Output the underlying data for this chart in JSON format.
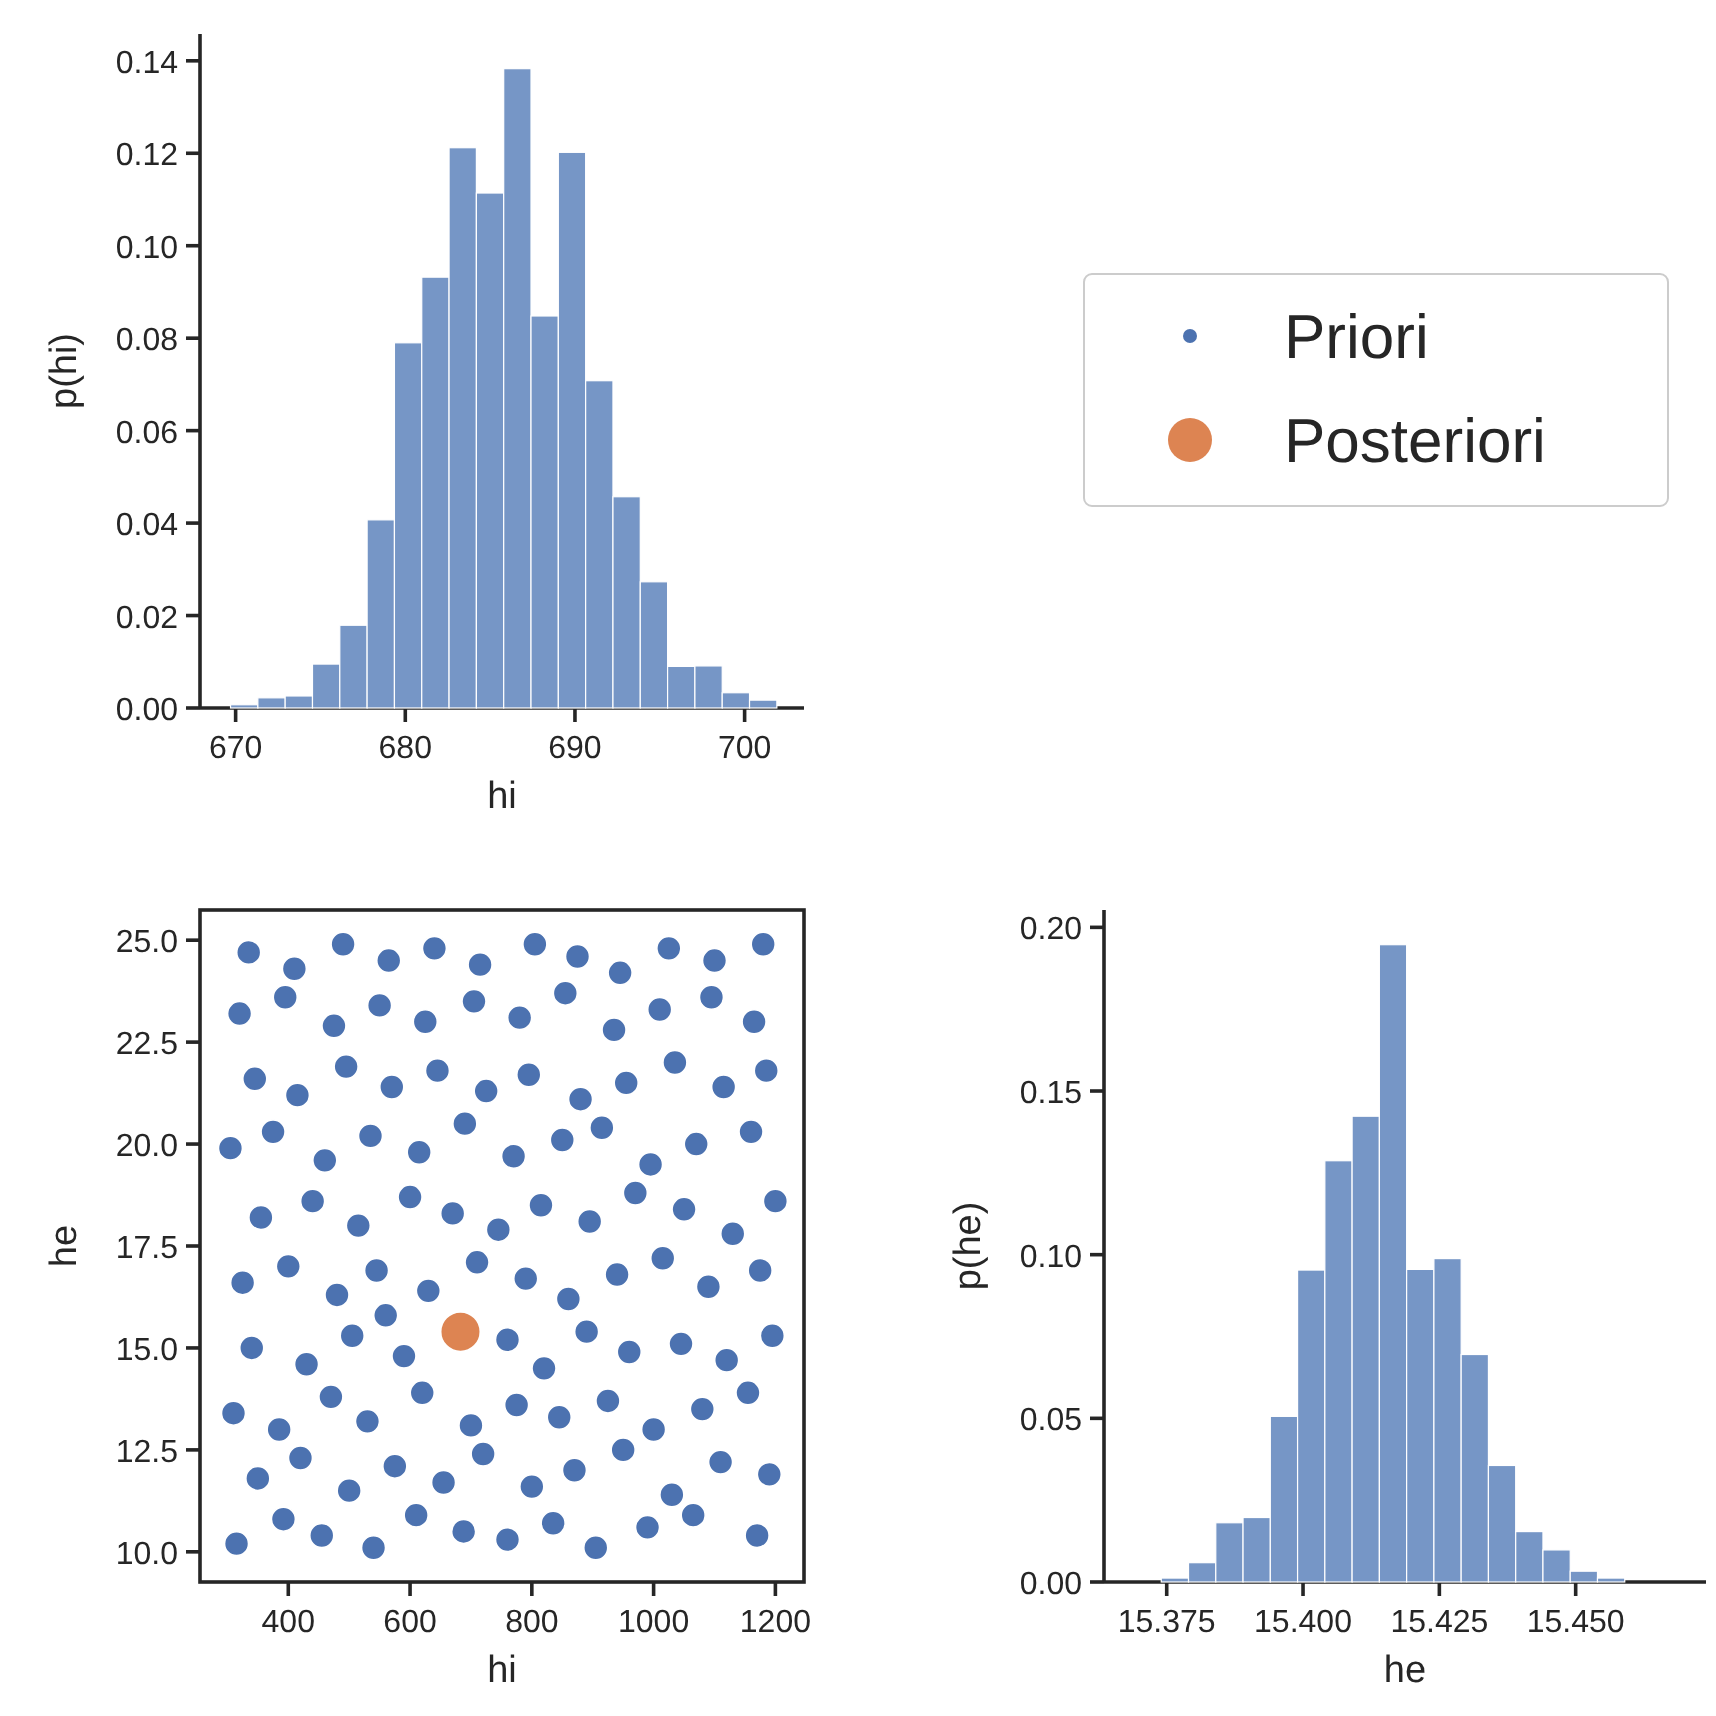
{
  "chart_data": [
    {
      "type": "histogram",
      "xlabel": "hi",
      "ylabel": "p(hi)",
      "color": "#7696c6",
      "bins": [
        669.7,
        671.31,
        672.92,
        674.53,
        676.14,
        677.75,
        679.36,
        680.97,
        682.58,
        684.19,
        685.8,
        687.41,
        689.02,
        690.63,
        692.24,
        693.85,
        695.46,
        697.07,
        698.68,
        700.29,
        701.9
      ],
      "values": [
        0.0007,
        0.0022,
        0.0026,
        0.0095,
        0.0179,
        0.0407,
        0.079,
        0.0932,
        0.1212,
        0.1114,
        0.1383,
        0.0848,
        0.1202,
        0.0708,
        0.0457,
        0.0273,
        0.009,
        0.0091,
        0.0033,
        0.0017
      ],
      "xlim": [
        667.9,
        703.5
      ],
      "ylim": [
        0,
        0.1458
      ],
      "xticks": [
        670,
        680,
        690,
        700
      ],
      "yticks": [
        {
          "value": 0,
          "label": "0.00"
        },
        {
          "value": 0.02,
          "label": "0.02"
        },
        {
          "value": 0.04,
          "label": "0.04"
        },
        {
          "value": 0.06,
          "label": "0.06"
        },
        {
          "value": 0.08,
          "label": "0.08"
        },
        {
          "value": 0.1,
          "label": "0.10"
        },
        {
          "value": 0.12,
          "label": "0.12"
        },
        {
          "value": 0.14,
          "label": "0.14"
        }
      ]
    },
    {
      "type": "scatter",
      "xlabel": "hi",
      "ylabel": "he",
      "marker": "circle",
      "legend": "top right",
      "xlim": [
        255,
        1247
      ],
      "ylim": [
        9.26,
        25.74
      ],
      "xticks": [
        400,
        600,
        800,
        1000,
        1200
      ],
      "yticks": [
        {
          "value": 10,
          "label": "10.0"
        },
        {
          "value": 12.5,
          "label": "12.5"
        },
        {
          "value": 15,
          "label": "15.0"
        },
        {
          "value": 17.5,
          "label": "17.5"
        },
        {
          "value": 20,
          "label": "20.0"
        },
        {
          "value": 22.5,
          "label": "22.5"
        },
        {
          "value": 25,
          "label": "25.0"
        }
      ],
      "series": [
        {
          "name": "Priori",
          "color": "#4c72b0",
          "x": [
            315,
            392,
            455,
            540,
            610,
            688,
            760,
            835,
            905,
            990,
            1065,
            1170,
            350,
            420,
            500,
            575,
            655,
            720,
            800,
            870,
            950,
            1030,
            1110,
            1190,
            310,
            385,
            470,
            530,
            620,
            700,
            775,
            845,
            925,
            1000,
            1080,
            1155,
            340,
            430,
            505,
            590,
            760,
            820,
            890,
            960,
            1045,
            1120,
            1195,
            560,
            325,
            400,
            480,
            545,
            630,
            710,
            790,
            860,
            940,
            1015,
            1090,
            1175,
            355,
            440,
            515,
            600,
            670,
            745,
            815,
            895,
            970,
            1050,
            1130,
            1200,
            305,
            375,
            460,
            535,
            615,
            690,
            770,
            850,
            915,
            995,
            1070,
            1160,
            345,
            415,
            495,
            570,
            645,
            725,
            795,
            880,
            955,
            1035,
            1115,
            1185,
            320,
            395,
            475,
            550,
            625,
            705,
            780,
            855,
            935,
            1010,
            1095,
            1165,
            335,
            410,
            490,
            565,
            640,
            715,
            805,
            875,
            945,
            1025,
            1100,
            1180
          ],
          "values": [
            10.2,
            10.8,
            10.4,
            10.1,
            10.9,
            10.5,
            10.3,
            10.7,
            10.1,
            10.6,
            10.9,
            10.4,
            11.8,
            12.3,
            11.5,
            12.1,
            11.7,
            12.4,
            11.6,
            12.0,
            12.5,
            11.4,
            12.2,
            11.9,
            13.4,
            13.0,
            13.8,
            13.2,
            13.9,
            13.1,
            13.6,
            13.3,
            13.7,
            13.0,
            13.5,
            13.9,
            15.0,
            14.6,
            15.3,
            14.8,
            15.2,
            14.5,
            15.4,
            14.9,
            15.1,
            14.7,
            15.3,
            15.8,
            16.6,
            17.0,
            16.3,
            16.9,
            16.4,
            17.1,
            16.7,
            16.2,
            16.8,
            17.2,
            16.5,
            16.9,
            18.2,
            18.6,
            18.0,
            18.7,
            18.3,
            17.9,
            18.5,
            18.1,
            18.8,
            18.4,
            17.8,
            18.6,
            19.9,
            20.3,
            19.6,
            20.2,
            19.8,
            20.5,
            19.7,
            20.1,
            20.4,
            19.5,
            20.0,
            20.3,
            21.6,
            21.2,
            21.9,
            21.4,
            21.8,
            21.3,
            21.7,
            21.1,
            21.5,
            22.0,
            21.4,
            21.8,
            23.2,
            23.6,
            22.9,
            23.4,
            23.0,
            23.5,
            23.1,
            23.7,
            22.8,
            23.3,
            23.6,
            23.0,
            24.7,
            24.3,
            24.9,
            24.5,
            24.8,
            24.4,
            24.9,
            24.6,
            24.2,
            24.8,
            24.5,
            24.9
          ]
        },
        {
          "name": "Posteriori",
          "color": "#dd8452",
          "x": [
            682.8
          ],
          "values": [
            15.4
          ]
        }
      ]
    },
    {
      "type": "histogram",
      "xlabel": "he",
      "ylabel": "p(he)",
      "color": "#7696c6",
      "bins": [
        15.374,
        15.379,
        15.384,
        15.389,
        15.394,
        15.399,
        15.404,
        15.409,
        15.414,
        15.419,
        15.424,
        15.429,
        15.434,
        15.439,
        15.444,
        15.449,
        15.454,
        15.459
      ],
      "values": [
        0.0012,
        0.0059,
        0.0181,
        0.0197,
        0.0506,
        0.0953,
        0.1287,
        0.1423,
        0.1947,
        0.0955,
        0.0988,
        0.0695,
        0.0356,
        0.0154,
        0.0098,
        0.0033,
        0.0012
      ],
      "xlim": [
        15.3635,
        15.4739
      ],
      "ylim": [
        0,
        0.2053
      ],
      "xticks": [
        15.375,
        {
          "value": 15.4,
          "label": "15.400"
        },
        15.425,
        {
          "value": 15.45,
          "label": "15.450"
        }
      ],
      "yticks": [
        {
          "value": 0,
          "label": "0.00"
        },
        {
          "value": 0.05,
          "label": "0.05"
        },
        {
          "value": 0.1,
          "label": "0.10"
        },
        {
          "value": 0.15,
          "label": "0.15"
        },
        {
          "value": 0.2,
          "label": "0.20"
        }
      ]
    }
  ]
}
